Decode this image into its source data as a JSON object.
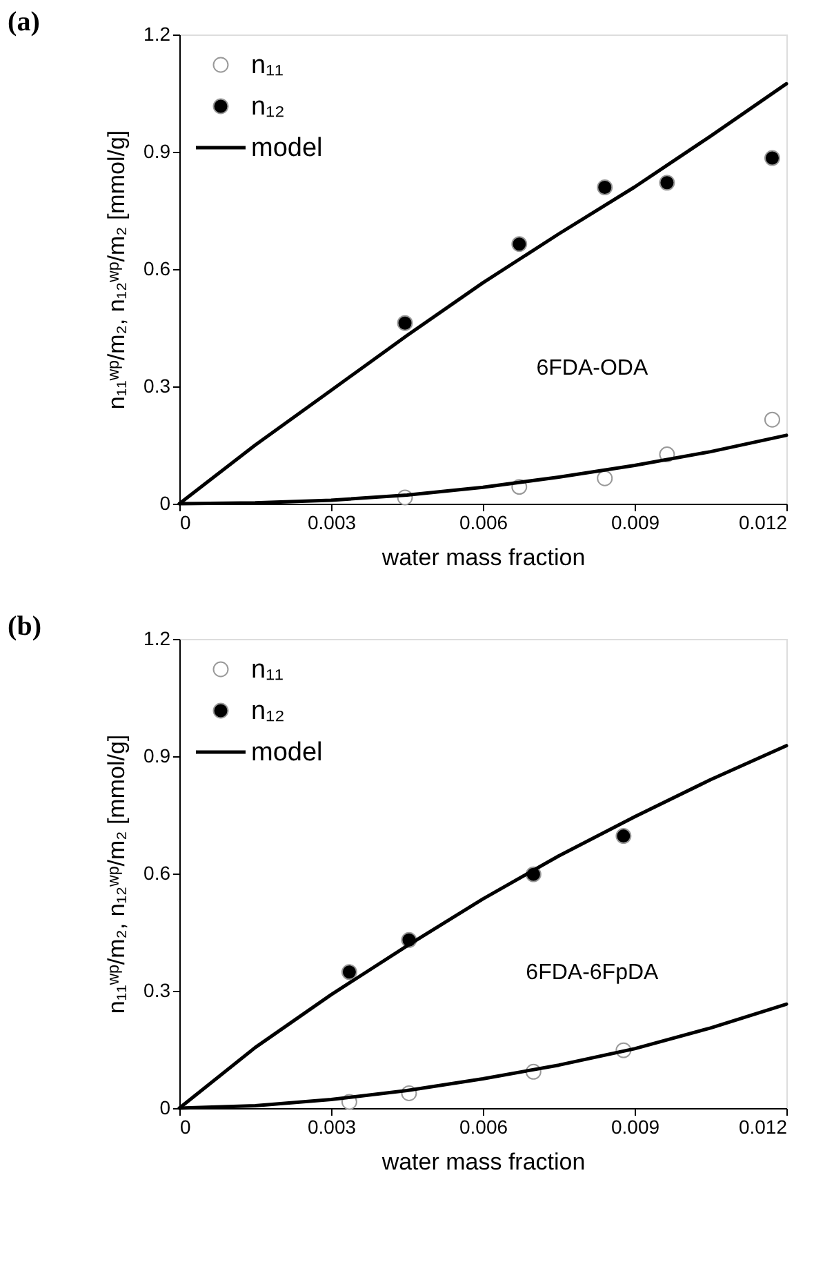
{
  "chart_data": [
    {
      "type": "scatter",
      "title": "(a)",
      "xlabel": "water mass fraction",
      "ylabel": "n₁₁ʷᵖ/m₂, n₁₂ʷᵖ/m₂  [mmol/g]",
      "xlim": [
        0,
        0.012
      ],
      "ylim": [
        0,
        1.2
      ],
      "xticks": [
        0,
        0.003,
        0.006,
        0.009,
        0.012
      ],
      "yticks": [
        0,
        0.3,
        0.6,
        0.9,
        1.2
      ],
      "grid": false,
      "legend": "top left",
      "annotations": [
        "6FDA-ODA"
      ],
      "series": [
        {
          "name": "n₁₁",
          "marker": "circle",
          "color": "#ffffff",
          "x": [
            0.00446,
            0.00672,
            0.00841,
            0.00964,
            0.01172
          ],
          "values": [
            0.016,
            0.043,
            0.065,
            0.126,
            0.215
          ]
        },
        {
          "name": "n₁₂",
          "marker": "circle",
          "color": "#000000",
          "x": [
            0.00446,
            0.00672,
            0.00841,
            0.00964,
            0.01172
          ],
          "values": [
            0.462,
            0.664,
            0.809,
            0.821,
            0.884
          ]
        },
        {
          "name": "model",
          "type": "line",
          "color": "#000000",
          "x": [
            0,
            0.0015,
            0.003,
            0.0045,
            0.006,
            0.0075,
            0.009,
            0.0105,
            0.012
          ],
          "values": [
            0,
            0.15,
            0.29,
            0.43,
            0.565,
            0.69,
            0.81,
            0.94,
            1.074
          ]
        },
        {
          "type": "line",
          "color": "#000000",
          "x": [
            0,
            0.0015,
            0.003,
            0.0045,
            0.006,
            0.0075,
            0.009,
            0.0105,
            0.012
          ],
          "values": [
            0,
            0.002,
            0.009,
            0.022,
            0.042,
            0.068,
            0.098,
            0.133,
            0.175
          ]
        }
      ]
    },
    {
      "type": "scatter",
      "title": "(b)",
      "xlabel": "water mass fraction",
      "ylabel": "n₁₁ʷᵖ/m₂, n₁₂ʷᵖ/m₂  [mmol/g]",
      "xlim": [
        0,
        0.012
      ],
      "ylim": [
        0,
        1.2
      ],
      "xticks": [
        0,
        0.003,
        0.006,
        0.009,
        0.012
      ],
      "yticks": [
        0,
        0.3,
        0.6,
        0.9,
        1.2
      ],
      "grid": false,
      "legend": "top left",
      "annotations": [
        "6FDA-6FpDA"
      ],
      "series": [
        {
          "name": "n₁₁",
          "marker": "circle",
          "color": "#ffffff",
          "x": [
            0.00336,
            0.00454,
            0.007,
            0.00878
          ],
          "values": [
            0.016,
            0.038,
            0.093,
            0.148
          ]
        },
        {
          "name": "n₁₂",
          "marker": "circle",
          "color": "#000000",
          "x": [
            0.00336,
            0.00454,
            0.007,
            0.00878
          ],
          "values": [
            0.348,
            0.43,
            0.598,
            0.696
          ]
        },
        {
          "name": "model",
          "type": "line",
          "color": "#000000",
          "x": [
            0,
            0.0015,
            0.003,
            0.0045,
            0.006,
            0.0075,
            0.009,
            0.0105,
            0.012
          ],
          "values": [
            0,
            0.155,
            0.29,
            0.415,
            0.535,
            0.645,
            0.745,
            0.84,
            0.927
          ]
        },
        {
          "type": "line",
          "color": "#000000",
          "x": [
            0,
            0.0015,
            0.003,
            0.0045,
            0.006,
            0.0075,
            0.009,
            0.0105,
            0.012
          ],
          "values": [
            0,
            0.006,
            0.022,
            0.045,
            0.075,
            0.11,
            0.152,
            0.205,
            0.266
          ]
        }
      ]
    }
  ]
}
